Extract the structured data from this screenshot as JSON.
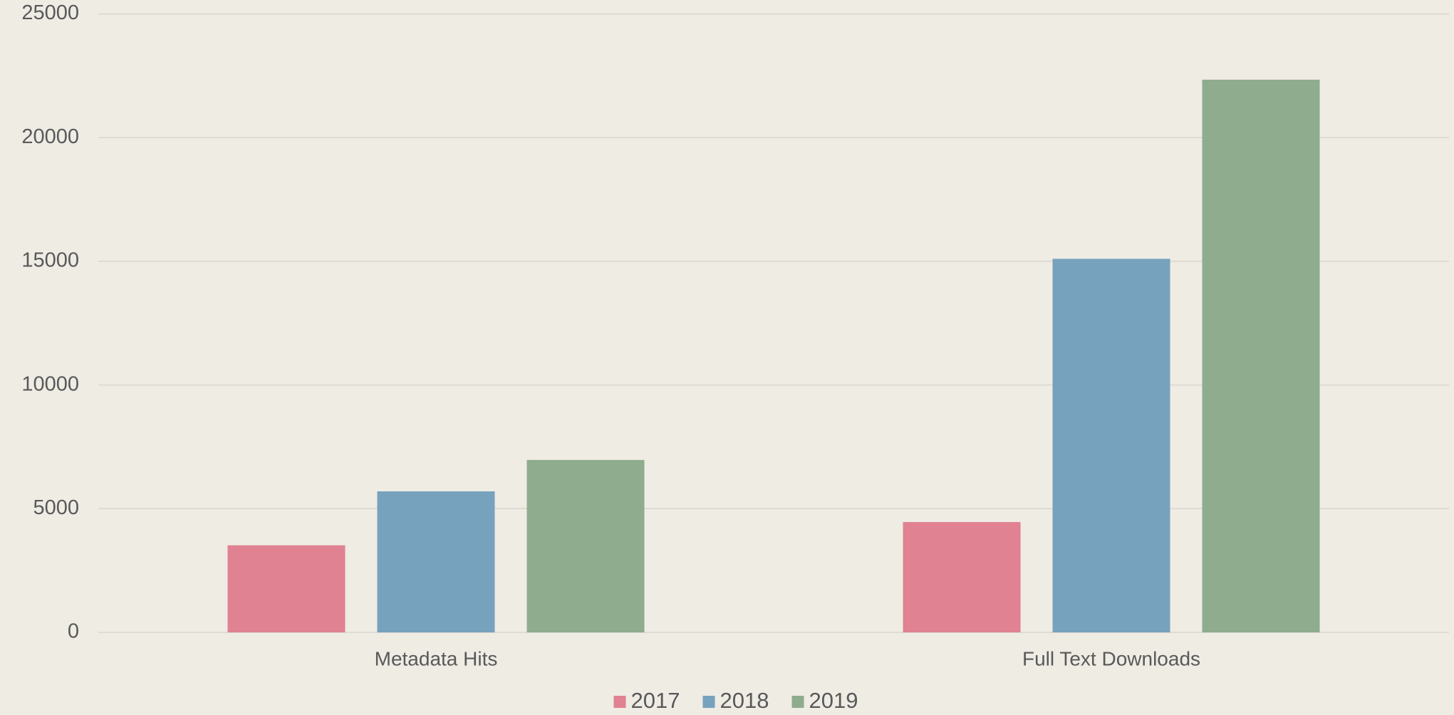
{
  "chart_data": {
    "type": "bar",
    "categories": [
      "Metadata Hits",
      "Full Text Downloads"
    ],
    "series": [
      {
        "name": "2017",
        "color": "#e08291",
        "values": [
          3520,
          4460
        ]
      },
      {
        "name": "2018",
        "color": "#77a2bd",
        "values": [
          5700,
          15100
        ]
      },
      {
        "name": "2019",
        "color": "#8fac8e",
        "values": [
          6970,
          22340
        ]
      }
    ],
    "ylim": [
      0,
      25000
    ],
    "yticks": [
      0,
      5000,
      10000,
      15000,
      20000,
      25000
    ],
    "grid": true,
    "legend": "bottom"
  }
}
